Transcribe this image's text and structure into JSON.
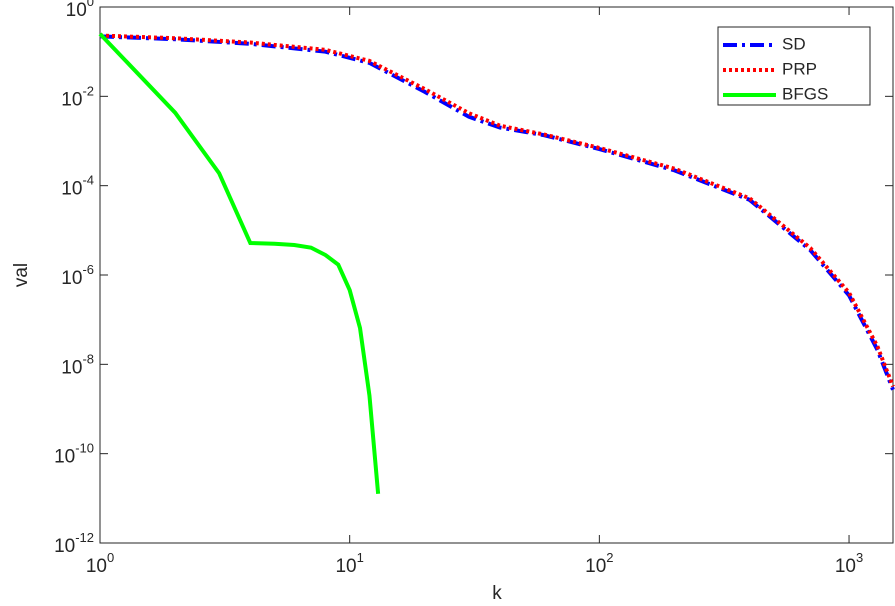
{
  "chart_data": {
    "type": "line",
    "xlabel": "k",
    "ylabel": "val",
    "xscale": "log",
    "yscale": "log",
    "xlim": [
      1,
      1500
    ],
    "ylim": [
      1e-12,
      1
    ],
    "xticks": [
      {
        "value": 1,
        "label": "10^0"
      },
      {
        "value": 10,
        "label": "10^1"
      },
      {
        "value": 100,
        "label": "10^2"
      },
      {
        "value": 1000,
        "label": "10^3"
      }
    ],
    "yticks": [
      {
        "value": 1e-12,
        "label": "10^-12"
      },
      {
        "value": 1e-10,
        "label": "10^-10"
      },
      {
        "value": 1e-08,
        "label": "10^-8"
      },
      {
        "value": 1e-06,
        "label": "10^-6"
      },
      {
        "value": 0.0001,
        "label": "10^-4"
      },
      {
        "value": 0.01,
        "label": "10^-2"
      },
      {
        "value": 1,
        "label": "10^0"
      }
    ],
    "grid": false,
    "legend": "northeast",
    "series": [
      {
        "name": "SD",
        "color": "#0000ff",
        "linestyle": "dashdot",
        "x": [
          1,
          2,
          4,
          8,
          12,
          20,
          30,
          40,
          60,
          100,
          200,
          400,
          700,
          1000,
          1300,
          1500
        ],
        "values": [
          0.22,
          0.19,
          0.15,
          0.1,
          0.056,
          0.0126,
          0.0035,
          0.002,
          0.00135,
          0.00066,
          0.00022,
          4.8e-05,
          3.6e-06,
          3.5e-07,
          2.1e-08,
          2.7e-09
        ]
      },
      {
        "name": "PRP",
        "color": "#ff0000",
        "linestyle": "dotted",
        "x": [
          1,
          2,
          4,
          8,
          12,
          20,
          30,
          40,
          60,
          100,
          200,
          400,
          700,
          1000,
          1300,
          1500
        ],
        "values": [
          0.23,
          0.2,
          0.16,
          0.11,
          0.062,
          0.0145,
          0.0042,
          0.0022,
          0.0014,
          0.0007,
          0.00024,
          5.2e-05,
          4e-06,
          4e-07,
          2.5e-08,
          3.2e-09
        ]
      },
      {
        "name": "BFGS",
        "color": "#00ff00",
        "linestyle": "solid",
        "x": [
          1,
          2,
          3,
          4,
          5,
          6,
          7,
          8,
          9,
          10,
          11,
          12,
          13
        ],
        "values": [
          0.25,
          0.0043,
          0.00019,
          5.2e-06,
          5e-06,
          4.7e-06,
          4.1e-06,
          2.8e-06,
          1.7e-06,
          4.6e-07,
          6.5e-08,
          2e-09,
          1.26e-11
        ]
      }
    ]
  }
}
